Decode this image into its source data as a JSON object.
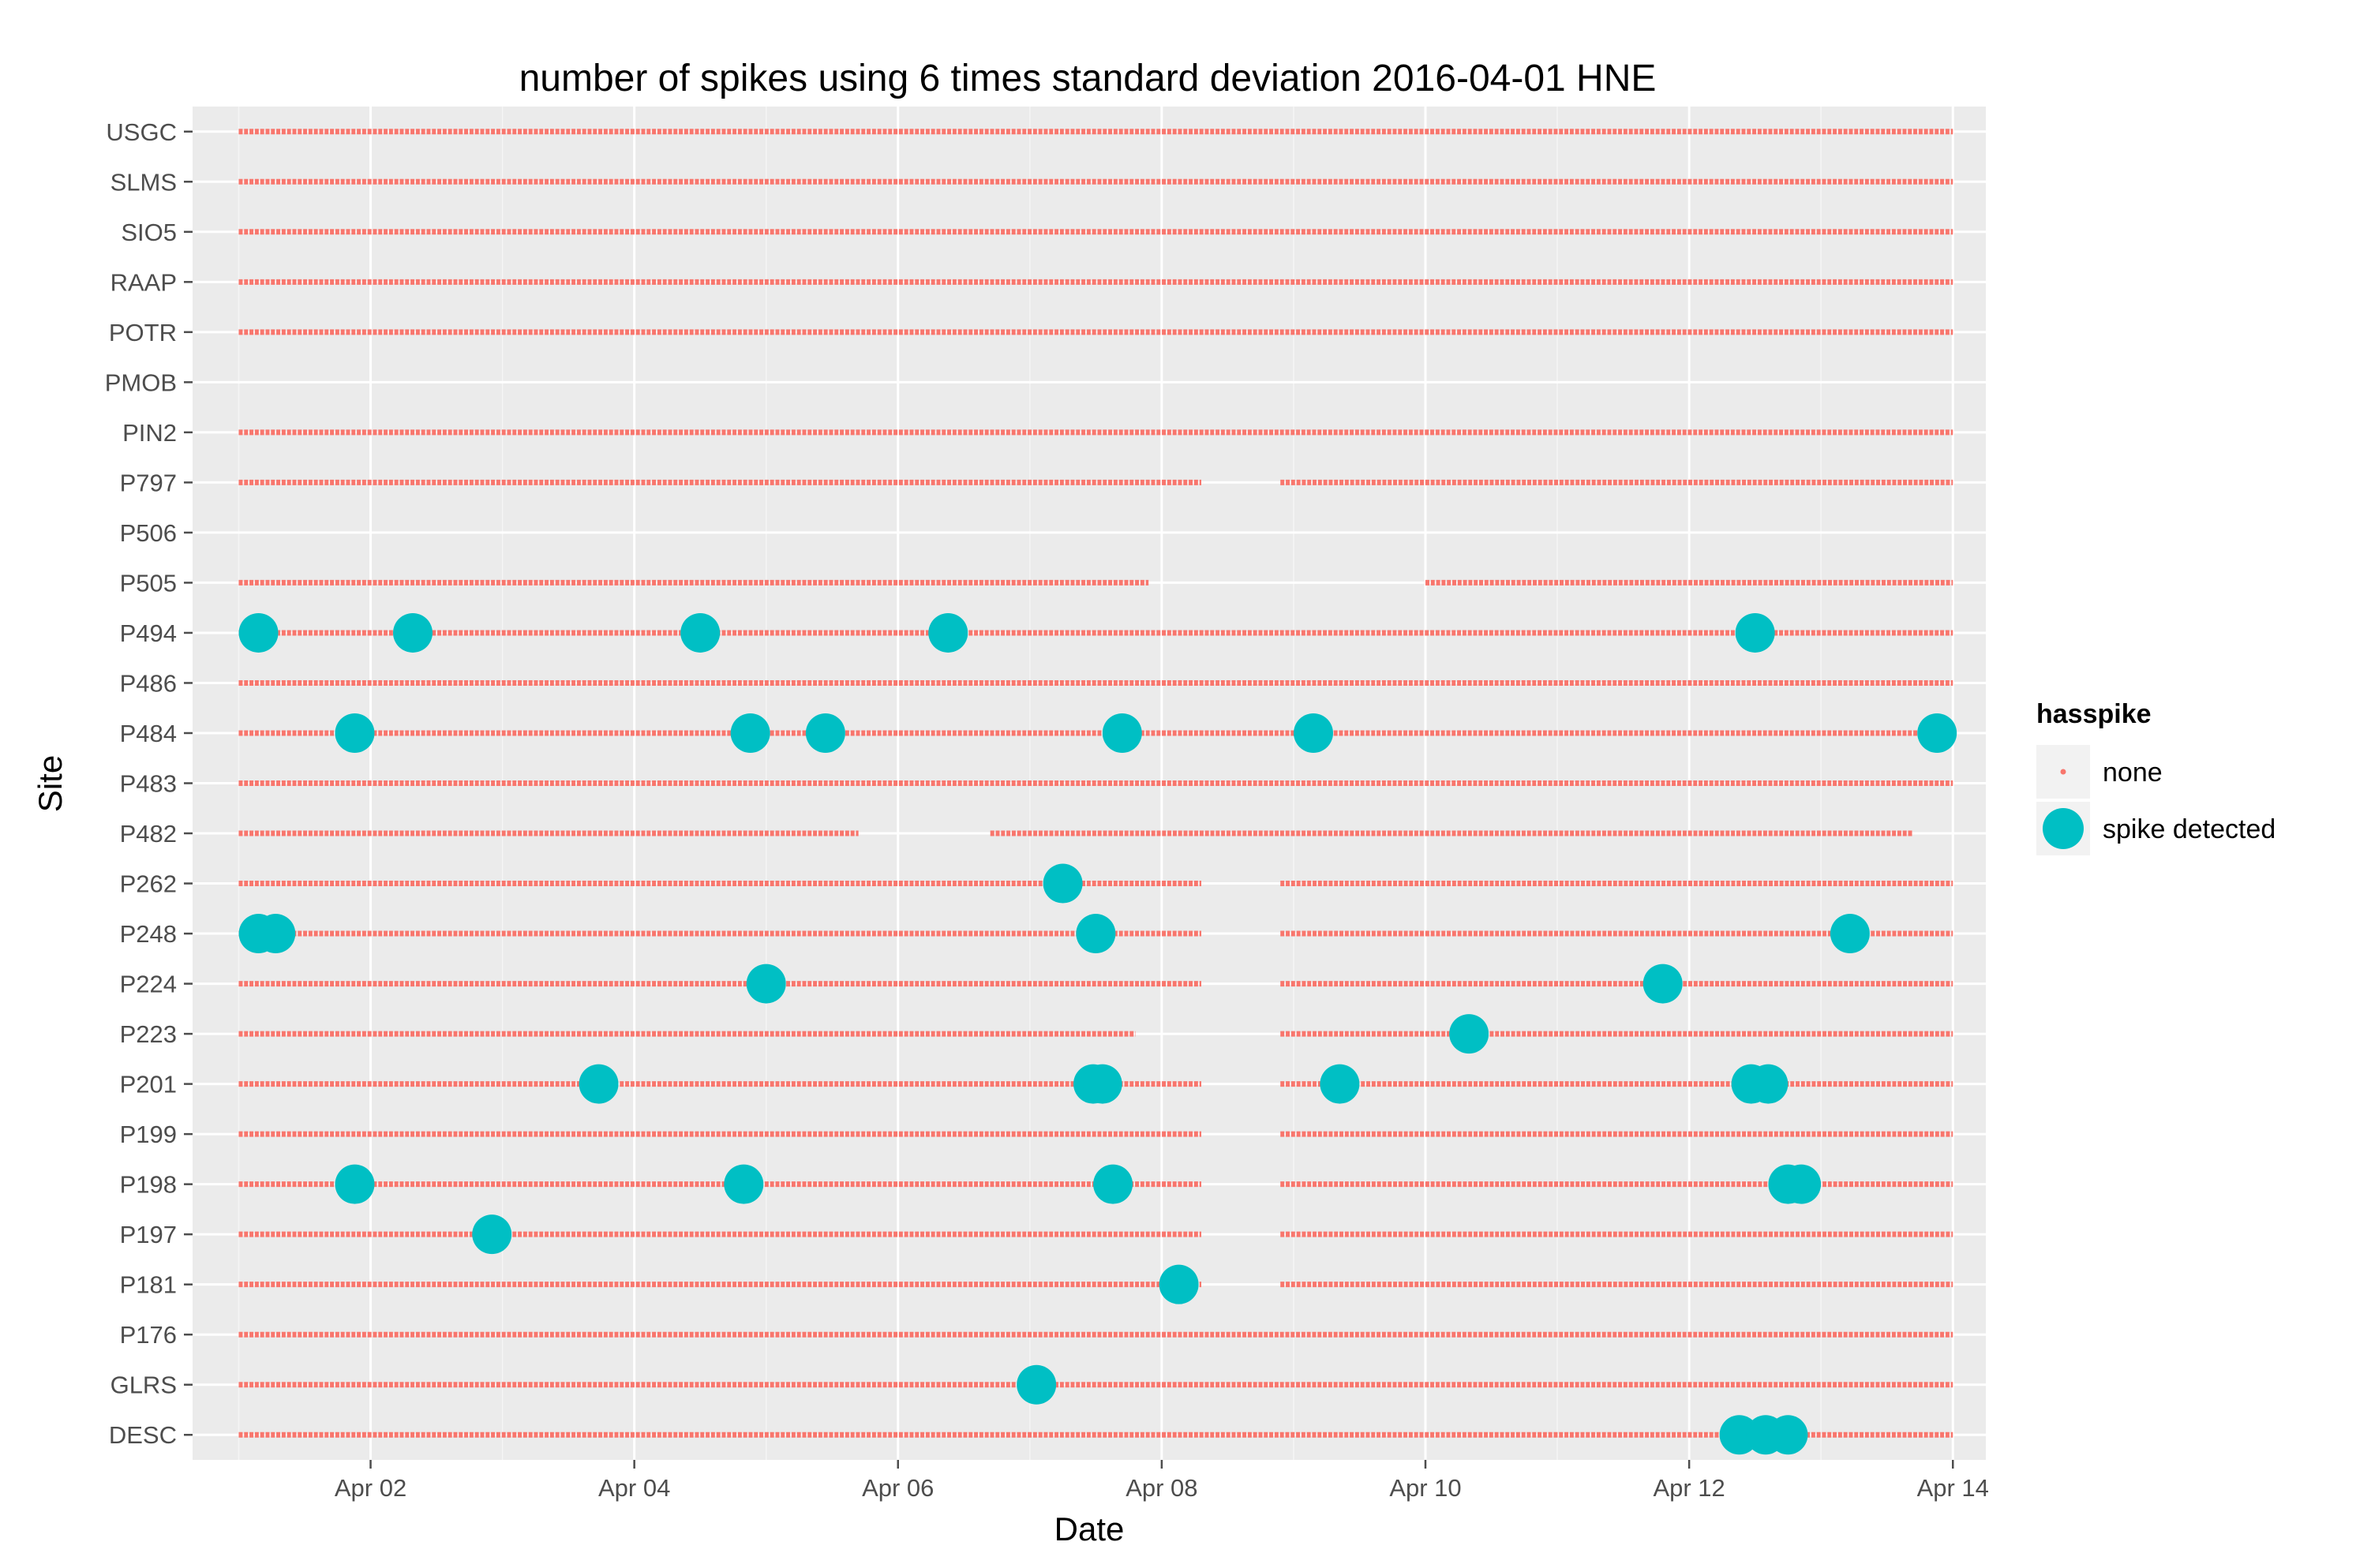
{
  "chart_data": {
    "type": "scatter",
    "title": "number of spikes using  6 times standard deviation 2016-04-01 HNE",
    "xlabel": "Date",
    "ylabel": "Site",
    "xlim": [
      0.65,
      14.25
    ],
    "x_ticks": [
      {
        "value": 2,
        "label": "Apr 02"
      },
      {
        "value": 4,
        "label": "Apr 04"
      },
      {
        "value": 6,
        "label": "Apr 06"
      },
      {
        "value": 8,
        "label": "Apr 08"
      },
      {
        "value": 10,
        "label": "Apr 10"
      },
      {
        "value": 12,
        "label": "Apr 12"
      },
      {
        "value": 14,
        "label": "Apr 14"
      }
    ],
    "sites": [
      "DESC",
      "GLRS",
      "P176",
      "P181",
      "P197",
      "P198",
      "P199",
      "P201",
      "P223",
      "P224",
      "P248",
      "P262",
      "P482",
      "P483",
      "P484",
      "P486",
      "P494",
      "P505",
      "P506",
      "P797",
      "PIN2",
      "PMOB",
      "POTR",
      "RAAP",
      "SIO5",
      "SLMS",
      "USGC"
    ],
    "colors": {
      "none": "#F8766D",
      "spike detected": "#00BFC4",
      "panel": "#EBEBEB",
      "grid": "#FFFFFF"
    },
    "legend": {
      "title": "hasspike",
      "position": "right",
      "entries": [
        {
          "label": "none",
          "key": "none"
        },
        {
          "label": "spike detected",
          "key": "spike detected"
        }
      ]
    },
    "series": [
      {
        "name": "none",
        "description": "continuous sampled observations with no spike (date ranges per site, in days of April 2016)",
        "ranges": {
          "USGC": [
            [
              1.0,
              14.0
            ]
          ],
          "SLMS": [
            [
              1.0,
              14.0
            ]
          ],
          "SIO5": [
            [
              1.0,
              14.0
            ]
          ],
          "RAAP": [
            [
              1.0,
              14.0
            ]
          ],
          "POTR": [
            [
              1.0,
              14.0
            ]
          ],
          "PMOB": [],
          "PIN2": [
            [
              1.0,
              14.0
            ]
          ],
          "P797": [
            [
              1.0,
              8.3
            ],
            [
              8.9,
              14.0
            ]
          ],
          "P506": [],
          "P505": [
            [
              1.0,
              7.9
            ],
            [
              10.0,
              14.0
            ]
          ],
          "P494": [
            [
              1.0,
              14.0
            ]
          ],
          "P486": [
            [
              1.0,
              14.0
            ]
          ],
          "P484": [
            [
              1.0,
              14.0
            ]
          ],
          "P483": [
            [
              1.0,
              14.0
            ]
          ],
          "P482": [
            [
              1.0,
              5.7
            ],
            [
              6.7,
              13.7
            ]
          ],
          "P262": [
            [
              1.0,
              8.3
            ],
            [
              8.9,
              14.0
            ]
          ],
          "P248": [
            [
              1.0,
              8.3
            ],
            [
              8.9,
              14.0
            ]
          ],
          "P224": [
            [
              1.0,
              8.3
            ],
            [
              8.9,
              14.0
            ]
          ],
          "P223": [
            [
              1.0,
              7.8
            ],
            [
              8.9,
              14.0
            ]
          ],
          "P201": [
            [
              1.0,
              8.3
            ],
            [
              8.9,
              14.0
            ]
          ],
          "P199": [
            [
              1.0,
              8.3
            ],
            [
              8.9,
              14.0
            ]
          ],
          "P198": [
            [
              1.0,
              8.3
            ],
            [
              8.9,
              14.0
            ]
          ],
          "P197": [
            [
              1.0,
              8.3
            ],
            [
              8.9,
              14.0
            ]
          ],
          "P181": [
            [
              1.0,
              8.3
            ],
            [
              8.9,
              14.0
            ]
          ],
          "P176": [
            [
              1.0,
              14.0
            ]
          ],
          "GLRS": [
            [
              1.0,
              14.0
            ]
          ],
          "DESC": [
            [
              1.0,
              14.0
            ]
          ]
        }
      },
      {
        "name": "spike detected",
        "points": [
          {
            "site": "P494",
            "x": 1.15
          },
          {
            "site": "P494",
            "x": 2.32
          },
          {
            "site": "P494",
            "x": 4.5
          },
          {
            "site": "P494",
            "x": 6.38
          },
          {
            "site": "P494",
            "x": 12.5
          },
          {
            "site": "P484",
            "x": 1.88
          },
          {
            "site": "P484",
            "x": 4.88
          },
          {
            "site": "P484",
            "x": 5.45
          },
          {
            "site": "P484",
            "x": 7.7
          },
          {
            "site": "P484",
            "x": 9.15
          },
          {
            "site": "P484",
            "x": 13.88
          },
          {
            "site": "P262",
            "x": 7.25
          },
          {
            "site": "P248",
            "x": 1.15
          },
          {
            "site": "P248",
            "x": 1.28
          },
          {
            "site": "P248",
            "x": 7.5
          },
          {
            "site": "P248",
            "x": 13.22
          },
          {
            "site": "P224",
            "x": 5.0
          },
          {
            "site": "P224",
            "x": 11.8
          },
          {
            "site": "P223",
            "x": 10.33
          },
          {
            "site": "P201",
            "x": 3.73
          },
          {
            "site": "P201",
            "x": 7.48
          },
          {
            "site": "P201",
            "x": 7.55
          },
          {
            "site": "P201",
            "x": 9.35
          },
          {
            "site": "P201",
            "x": 12.47
          },
          {
            "site": "P201",
            "x": 12.6
          },
          {
            "site": "P198",
            "x": 1.88
          },
          {
            "site": "P198",
            "x": 4.83
          },
          {
            "site": "P198",
            "x": 7.63
          },
          {
            "site": "P198",
            "x": 12.75
          },
          {
            "site": "P198",
            "x": 12.85
          },
          {
            "site": "P197",
            "x": 2.92
          },
          {
            "site": "P181",
            "x": 8.13
          },
          {
            "site": "GLRS",
            "x": 7.05
          },
          {
            "site": "DESC",
            "x": 12.38
          },
          {
            "site": "DESC",
            "x": 12.58
          },
          {
            "site": "DESC",
            "x": 12.75
          }
        ]
      }
    ]
  }
}
